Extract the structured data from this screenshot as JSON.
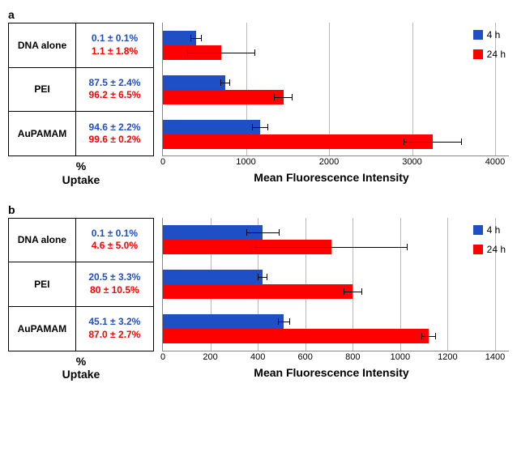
{
  "legend": {
    "series1": "4 h",
    "series2": "24 h",
    "color1": "#1f4fc4",
    "color2": "#ff0000"
  },
  "captions": {
    "left_line1": "%",
    "left_line2": "Uptake",
    "right": "Mean Fluorescence Intensity"
  },
  "panels": [
    {
      "id": "a",
      "xmax": 4000,
      "xticks": [
        0,
        1000,
        2000,
        3000,
        4000
      ],
      "rows": [
        {
          "name": "DNA alone",
          "uptake_4h": "0.1 ± 0.1%",
          "uptake_24h": "1.1 ± 1.8%",
          "val_4h": 400,
          "err_4h": 70,
          "val_24h": 700,
          "err_24h": 410
        },
        {
          "name": "PEI",
          "uptake_4h": "87.5 ± 2.4%",
          "uptake_24h": "96.2 ± 6.5%",
          "val_4h": 750,
          "err_4h": 60,
          "val_24h": 1450,
          "err_24h": 110
        },
        {
          "name": "AuPAMAM",
          "uptake_4h": "94.6 ± 2.2%",
          "uptake_24h": "99.6 ± 0.2%",
          "val_4h": 1170,
          "err_4h": 95,
          "val_24h": 3250,
          "err_24h": 350
        }
      ]
    },
    {
      "id": "b",
      "xmax": 1400,
      "xticks": [
        0,
        200,
        400,
        600,
        800,
        1000,
        1200,
        1400
      ],
      "rows": [
        {
          "name": "DNA alone",
          "uptake_4h": "0.1 ± 0.1%",
          "uptake_24h": "4.6 ± 5.0%",
          "val_4h": 420,
          "err_4h": 70,
          "val_24h": 710,
          "err_24h": 320
        },
        {
          "name": "PEI",
          "uptake_4h": "20.5 ± 3.3%",
          "uptake_24h": "80 ± 10.5%",
          "val_4h": 420,
          "err_4h": 20,
          "val_24h": 800,
          "err_24h": 40
        },
        {
          "name": "AuPAMAM",
          "uptake_4h": "45.1 ± 3.2%",
          "uptake_24h": "87.0 ± 2.7%",
          "val_4h": 510,
          "err_4h": 25,
          "val_24h": 1120,
          "err_24h": 30
        }
      ]
    }
  ]
}
